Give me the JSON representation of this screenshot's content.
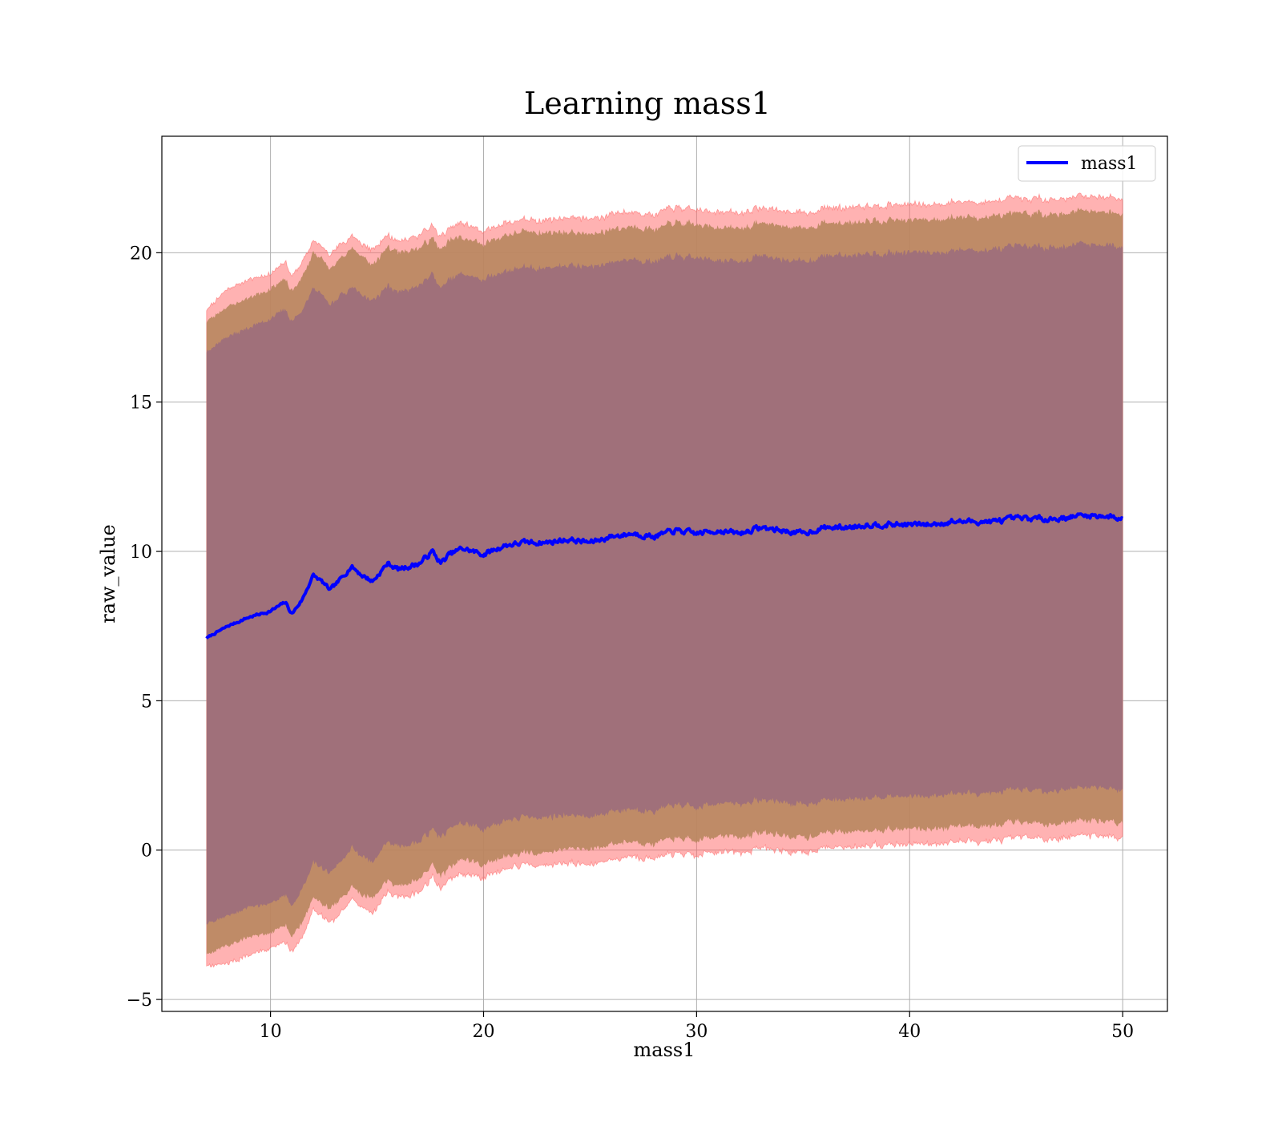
{
  "chart_data": {
    "type": "area",
    "title": "Learning mass1",
    "xlabel": "mass1",
    "ylabel": "raw_value",
    "xlim": [
      4.9,
      52.1
    ],
    "ylim": [
      -5.4,
      23.9
    ],
    "x_ticks": [
      10,
      20,
      30,
      40,
      50
    ],
    "x_tick_labels": [
      "10",
      "20",
      "30",
      "40",
      "50"
    ],
    "y_ticks": [
      -5,
      0,
      5,
      10,
      15,
      20
    ],
    "y_tick_labels": [
      "−5",
      "0",
      "5",
      "10",
      "15",
      "20"
    ],
    "grid": true,
    "legend": {
      "position": "top-right",
      "entries": [
        "mass1"
      ]
    },
    "colors": {
      "line": "#0000ff",
      "band_outer": "#ff6666",
      "band_middle": "#b8865e",
      "band_inner": "#a0707a",
      "grid": "#b0b0b0",
      "axis": "#000000"
    },
    "series": [
      {
        "name": "mass1",
        "x": [
          7.0,
          8.0,
          9.0,
          10.0,
          10.7,
          11.0,
          11.5,
          12.0,
          12.4,
          12.8,
          13.2,
          13.8,
          14.3,
          14.8,
          15.5,
          16.0,
          17.0,
          17.6,
          18.0,
          18.4,
          19.0,
          20.0,
          21.0,
          22.0,
          23.0,
          24.0,
          25.0,
          26.0,
          27.0,
          28.0,
          29.0,
          30.0,
          31.0,
          32.0,
          33.0,
          34.0,
          35.0,
          36.0,
          37.0,
          38.0,
          39.0,
          40.0,
          41.0,
          42.0,
          43.0,
          44.0,
          45.0,
          46.0,
          47.0,
          48.0,
          49.0,
          50.0
        ],
        "mean": [
          7.1,
          7.5,
          7.8,
          8.0,
          8.3,
          7.9,
          8.4,
          9.2,
          9.0,
          8.7,
          9.0,
          9.5,
          9.2,
          9.0,
          9.6,
          9.4,
          9.6,
          10.0,
          9.6,
          9.9,
          10.1,
          9.9,
          10.2,
          10.3,
          10.3,
          10.4,
          10.3,
          10.5,
          10.6,
          10.5,
          10.7,
          10.6,
          10.7,
          10.6,
          10.8,
          10.7,
          10.6,
          10.8,
          10.8,
          10.9,
          10.9,
          10.9,
          10.9,
          11.0,
          11.0,
          11.0,
          11.1,
          11.1,
          11.1,
          11.2,
          11.2,
          11.1
        ],
        "band_outer": [
          11.0,
          11.3,
          11.3,
          11.3,
          11.4,
          11.3,
          11.3,
          11.2,
          11.2,
          11.2,
          11.2,
          11.1,
          11.1,
          11.1,
          11.0,
          11.0,
          11.0,
          10.9,
          10.9,
          10.9,
          10.9,
          10.8,
          10.8,
          10.8,
          10.8,
          10.8,
          10.8,
          10.8,
          10.8,
          10.8,
          10.8,
          10.8,
          10.7,
          10.7,
          10.7,
          10.7,
          10.7,
          10.7,
          10.7,
          10.7,
          10.7,
          10.7,
          10.7,
          10.7,
          10.7,
          10.7,
          10.7,
          10.7,
          10.7,
          10.7,
          10.7,
          10.7
        ],
        "band_middle": [
          10.6,
          10.7,
          10.7,
          10.8,
          10.8,
          10.8,
          10.8,
          10.8,
          10.8,
          10.7,
          10.7,
          10.7,
          10.7,
          10.6,
          10.6,
          10.6,
          10.6,
          10.5,
          10.5,
          10.5,
          10.4,
          10.4,
          10.4,
          10.4,
          10.4,
          10.3,
          10.3,
          10.3,
          10.3,
          10.3,
          10.3,
          10.3,
          10.2,
          10.2,
          10.2,
          10.2,
          10.2,
          10.2,
          10.2,
          10.2,
          10.2,
          10.2,
          10.2,
          10.2,
          10.2,
          10.2,
          10.2,
          10.2,
          10.2,
          10.2,
          10.2,
          10.2
        ],
        "band_inner": [
          9.6,
          9.7,
          9.7,
          9.8,
          9.8,
          9.8,
          9.7,
          9.6,
          9.6,
          9.5,
          9.5,
          9.4,
          9.4,
          9.4,
          9.3,
          9.3,
          9.3,
          9.3,
          9.2,
          9.2,
          9.2,
          9.2,
          9.2,
          9.2,
          9.2,
          9.2,
          9.2,
          9.2,
          9.2,
          9.2,
          9.2,
          9.2,
          9.1,
          9.1,
          9.1,
          9.1,
          9.1,
          9.1,
          9.1,
          9.1,
          9.1,
          9.1,
          9.1,
          9.1,
          9.1,
          9.1,
          9.1,
          9.1,
          9.1,
          9.1,
          9.1,
          9.1
        ]
      }
    ]
  }
}
